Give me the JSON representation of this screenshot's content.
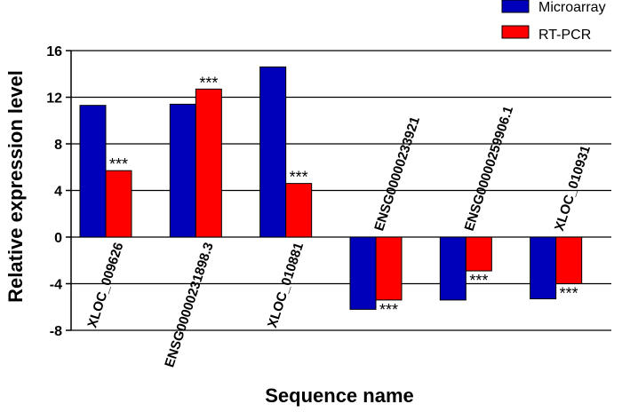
{
  "chart_data": {
    "type": "bar",
    "title": "",
    "xlabel": "Sequence name",
    "ylabel": "Relative expression level",
    "ylim": [
      -8,
      16
    ],
    "yticks": [
      -8,
      -4,
      0,
      4,
      8,
      12,
      16
    ],
    "grid": true,
    "legend_position": "top-right",
    "categories": [
      "XLOC_009626",
      "ENSG00000231898.3",
      "XLOC_010881",
      "ENSG00000233921",
      "ENSG00000259906.1",
      "XLOC_010931"
    ],
    "series": [
      {
        "name": "Microarray",
        "color": "#0000bb",
        "values": [
          11.3,
          11.4,
          14.6,
          -6.2,
          -5.4,
          -5.3
        ]
      },
      {
        "name": "RT-PCR",
        "color": "#ff0000",
        "values": [
          5.7,
          12.7,
          4.6,
          -5.4,
          -2.9,
          -4.0
        ]
      }
    ],
    "annotations": [
      "***",
      "***",
      "***",
      "***",
      "***",
      "***"
    ]
  }
}
